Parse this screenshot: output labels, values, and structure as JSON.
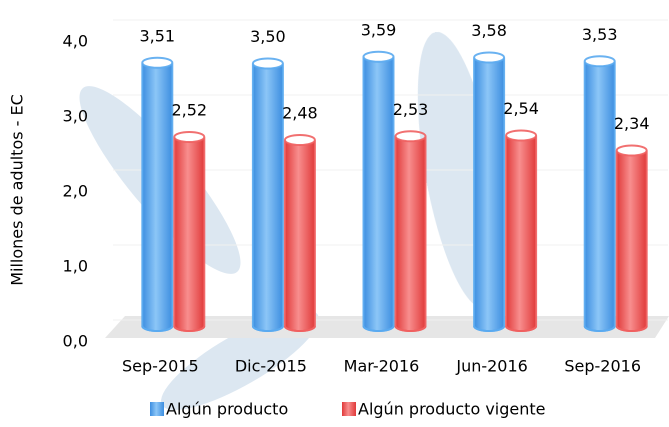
{
  "chart_data": {
    "type": "bar",
    "y_label": "Millones de adultos - EC",
    "categories": [
      "Sep-2015",
      "Dic-2015",
      "Mar-2016",
      "Jun-2016",
      "Sep-2016"
    ],
    "series": [
      {
        "name": "Algún producto",
        "color": "#5aaaf0",
        "values": [
          3.51,
          3.5,
          3.59,
          3.58,
          3.53
        ],
        "value_labels": [
          "3,51",
          "3,50",
          "3,59",
          "3,58",
          "3,53"
        ]
      },
      {
        "name": "Algún producto vigente",
        "color": "#f06060",
        "values": [
          2.52,
          2.48,
          2.53,
          2.54,
          2.34
        ],
        "value_labels": [
          "2,52",
          "2,48",
          "2,53",
          "2,54",
          "2,34"
        ]
      }
    ],
    "ylim": [
      0,
      4
    ],
    "yticks": [
      {
        "value": 0,
        "label": "0,0"
      },
      {
        "value": 1,
        "label": "1,0"
      },
      {
        "value": 2,
        "label": "2,0"
      },
      {
        "value": 3,
        "label": "3,0"
      },
      {
        "value": 4,
        "label": "4,0"
      }
    ],
    "grid": true
  }
}
